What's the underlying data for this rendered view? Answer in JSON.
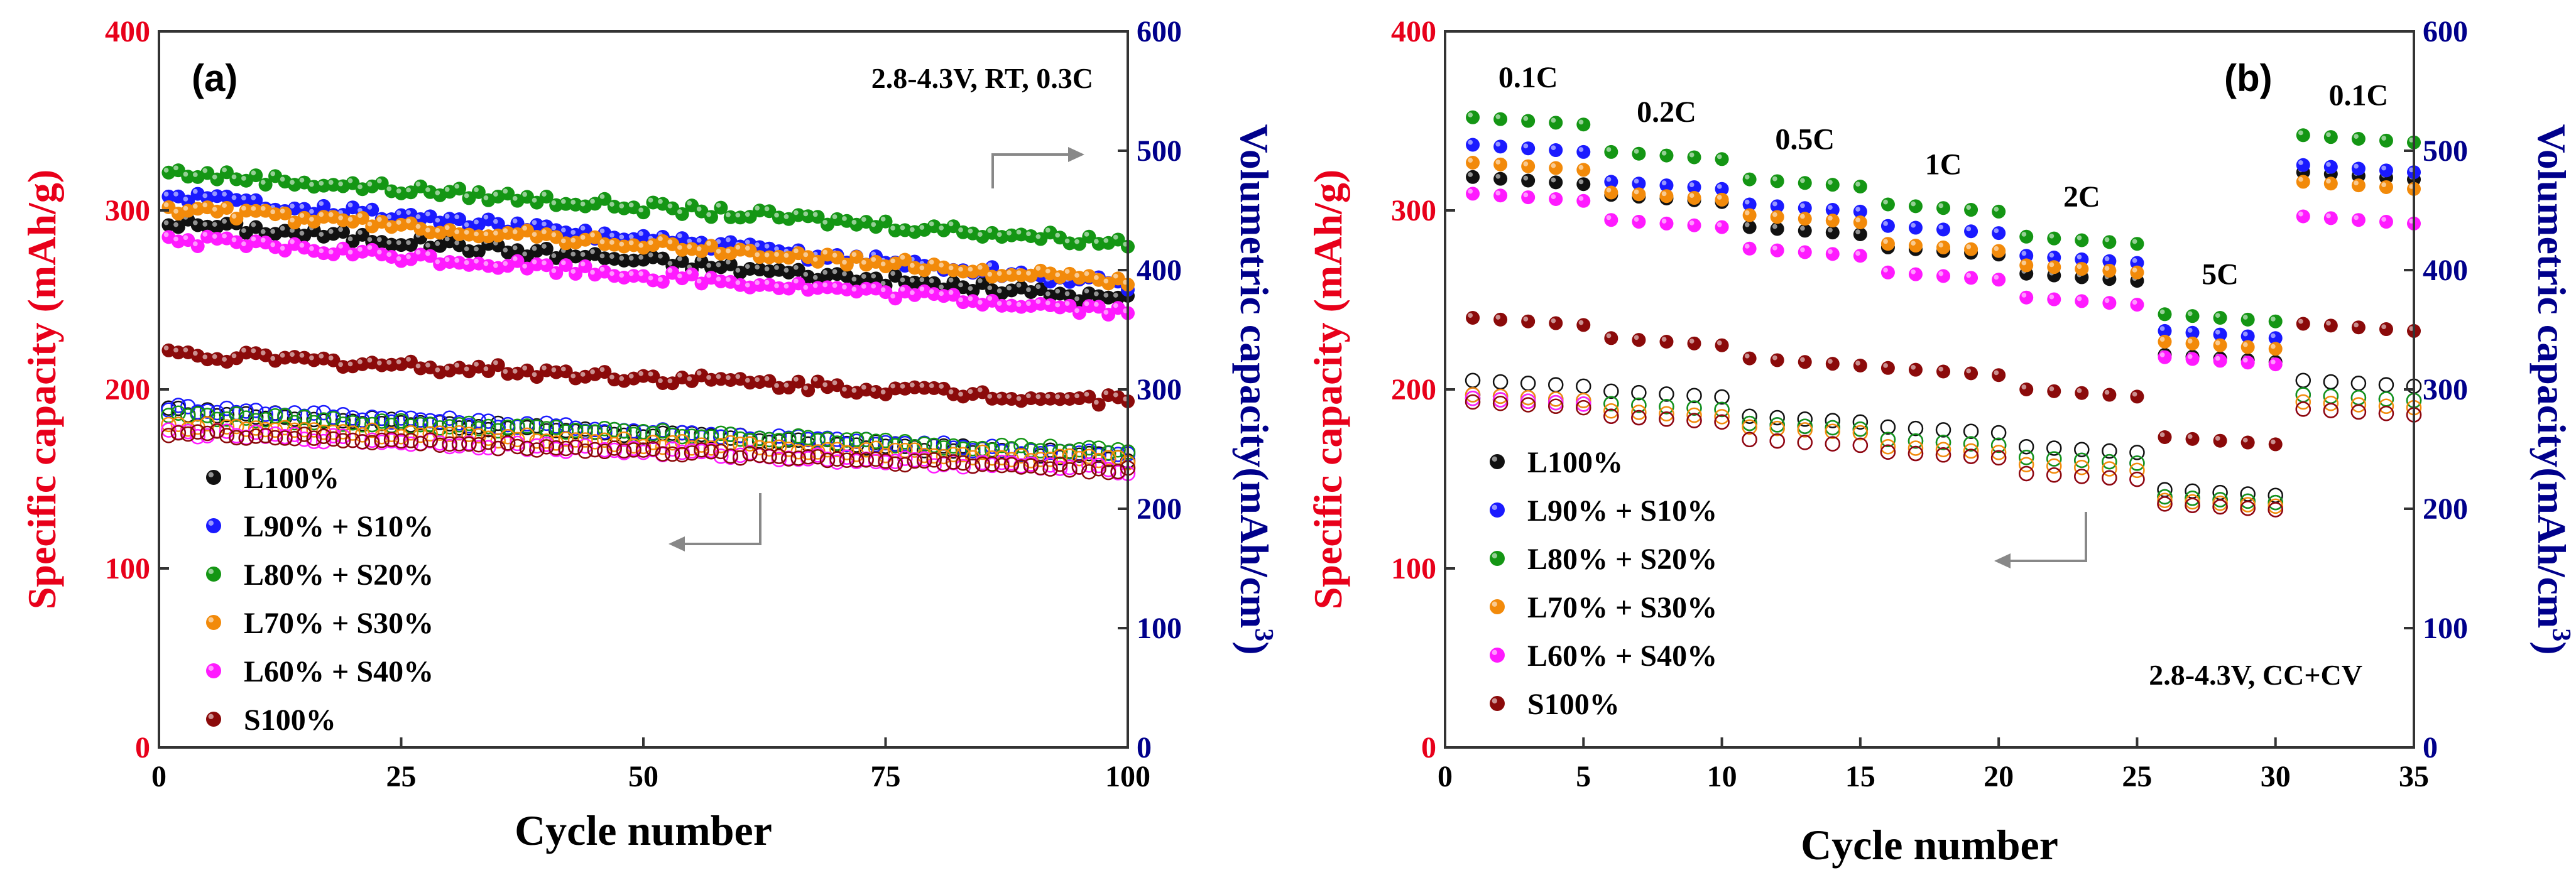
{
  "figure": {
    "series_styles": [
      {
        "key": "L100",
        "label": "L100%",
        "color": "#111111"
      },
      {
        "key": "L90S10",
        "label": "L90% + S10%",
        "color": "#1a1aff"
      },
      {
        "key": "L80S20",
        "label": "L80% + S20%",
        "color": "#149614"
      },
      {
        "key": "L70S30",
        "label": "L70% + S30%",
        "color": "#f28a0a"
      },
      {
        "key": "L60S40",
        "label": "L60% + S40%",
        "color": "#ff1aff"
      },
      {
        "key": "S100",
        "label": "S100%",
        "color": "#8b0a0a"
      }
    ],
    "axis_colors": {
      "left": "#e8001a",
      "right": "#00008b"
    }
  },
  "chart_data": [
    {
      "type": "scatter",
      "panel_label": "(a)",
      "annotation": "2.8-4.3V, RT, 0.3C",
      "xlabel": "Cycle number",
      "ylabel": "Specific capacity (mAh/g)",
      "y2label": "Volumetric capacity(mAh/cm",
      "y2label_sup": "3",
      "y2label_end": ")",
      "xlim": [
        0,
        100
      ],
      "ylim": [
        0,
        400
      ],
      "y2lim": [
        0,
        600
      ],
      "xticks": [
        0,
        25,
        50,
        75,
        100
      ],
      "yticks": [
        0,
        100,
        200,
        300,
        400
      ],
      "y2ticks": [
        0,
        100,
        200,
        300,
        400,
        500,
        600
      ],
      "markers": "filled = volumetric (right axis), hollow = specific (left axis)",
      "series": [
        {
          "name": "L100%",
          "volumetric_start": 440,
          "volumetric_end": 375,
          "specific_start": 188,
          "specific_end": 162
        },
        {
          "name": "L90% + S10%",
          "volumetric_start": 463,
          "volumetric_end": 388,
          "specific_start": 190,
          "specific_end": 163
        },
        {
          "name": "L80% + S20%",
          "volumetric_start": 482,
          "volumetric_end": 423,
          "specific_start": 186,
          "specific_end": 165
        },
        {
          "name": "L70% + S30%",
          "volumetric_start": 452,
          "volumetric_end": 390,
          "specific_start": 180,
          "specific_end": 160
        },
        {
          "name": "L60% + S40%",
          "volumetric_start": 426,
          "volumetric_end": 365,
          "specific_start": 176,
          "specific_end": 155
        },
        {
          "name": "S100%",
          "volumetric_start": 330,
          "volumetric_end": 290,
          "specific_start": 176,
          "specific_end": 155
        }
      ]
    },
    {
      "type": "scatter",
      "panel_label": "(b)",
      "annotation": "2.8-4.3V, CC+CV",
      "xlabel": "Cycle number",
      "ylabel": "Specific capacity (mAh/g)",
      "y2label": "Volumetric capacity(mAh/cm",
      "y2label_sup": "3",
      "y2label_end": ")",
      "xlim": [
        0,
        35
      ],
      "ylim": [
        0,
        400
      ],
      "y2lim": [
        0,
        600
      ],
      "xticks": [
        0,
        5,
        10,
        15,
        20,
        25,
        30,
        35
      ],
      "yticks": [
        0,
        100,
        200,
        300,
        400
      ],
      "y2ticks": [
        0,
        100,
        200,
        300,
        400,
        500,
        600
      ],
      "rate_labels": [
        "0.1C",
        "0.2C",
        "0.5C",
        "1C",
        "2C",
        "5C",
        "0.1C"
      ],
      "rate_segments": [
        [
          1,
          5
        ],
        [
          6,
          10
        ],
        [
          11,
          15
        ],
        [
          16,
          20
        ],
        [
          21,
          25
        ],
        [
          26,
          30
        ],
        [
          31,
          35
        ]
      ],
      "series": [
        {
          "name": "L100%",
          "volumetric": [
            478,
            463,
            436,
            419,
            397,
            329,
            482
          ],
          "specific": [
            205,
            199,
            185,
            179,
            168,
            144,
            205
          ]
        },
        {
          "name": "L90% + S10%",
          "volumetric": [
            505,
            474,
            455,
            437,
            412,
            349,
            488
          ],
          "specific": [
            197,
            192,
            181,
            172,
            162,
            140,
            197
          ]
        },
        {
          "name": "L80% + S20%",
          "volumetric": [
            528,
            499,
            476,
            455,
            428,
            363,
            513
          ],
          "specific": [
            195,
            192,
            181,
            172,
            162,
            140,
            197
          ]
        },
        {
          "name": "L70% + S30%",
          "volumetric": [
            490,
            465,
            446,
            422,
            404,
            340,
            474
          ],
          "specific": [
            197,
            188,
            179,
            168,
            158,
            138,
            193
          ]
        },
        {
          "name": "L60% + S40%",
          "volumetric": [
            464,
            442,
            418,
            398,
            377,
            327,
            445
          ],
          "specific": [
            195,
            185,
            172,
            165,
            153,
            136,
            189
          ]
        },
        {
          "name": "S100%",
          "volumetric": [
            360,
            343,
            326,
            318,
            300,
            260,
            355
          ],
          "specific": [
            193,
            185,
            172,
            165,
            153,
            136,
            189
          ]
        }
      ]
    }
  ]
}
